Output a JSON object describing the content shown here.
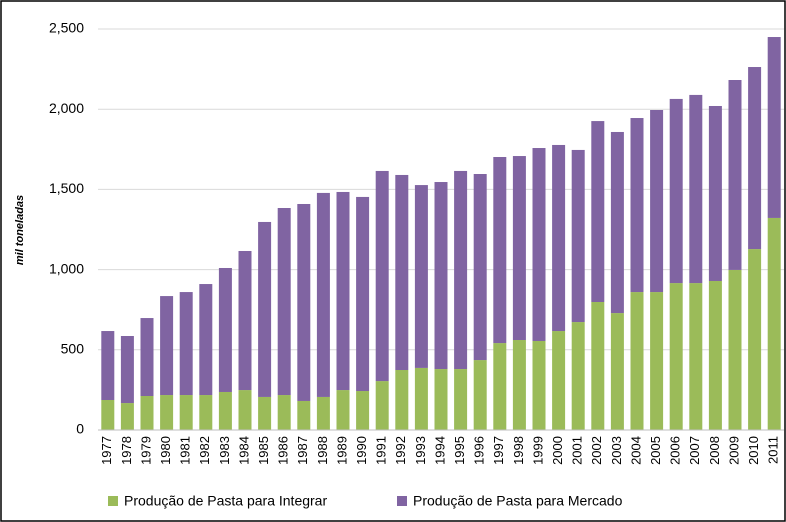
{
  "chart_data": {
    "type": "stacked_bar",
    "y_label": "mil toneladas",
    "categories": [
      "1977",
      "1978",
      "1979",
      "1980",
      "1981",
      "1982",
      "1983",
      "1984",
      "1985",
      "1986",
      "1987",
      "1988",
      "1989",
      "1990",
      "1991",
      "1992",
      "1993",
      "1994",
      "1995",
      "1996",
      "1997",
      "1998",
      "1999",
      "2000",
      "2001",
      "2002",
      "2003",
      "2004",
      "2005",
      "2006",
      "2007",
      "2008",
      "2009",
      "2010",
      "2011"
    ],
    "series": [
      {
        "name": "Produção de Pasta para Integrar",
        "color": "#9bbb59",
        "values": [
          187,
          168,
          212,
          218,
          218,
          218,
          237,
          249,
          206,
          218,
          181,
          206,
          249,
          243,
          305,
          374,
          387,
          380,
          380,
          436,
          542,
          561,
          555,
          617,
          673,
          798,
          729,
          860,
          860,
          916,
          916,
          929,
          998,
          1128,
          1322
        ]
      },
      {
        "name": "Produção de Pasta para Mercado",
        "color": "#8064a2",
        "values": [
          430,
          418,
          486,
          617,
          642,
          692,
          773,
          867,
          1091,
          1166,
          1228,
          1272,
          1235,
          1210,
          1310,
          1216,
          1140,
          1166,
          1235,
          1160,
          1160,
          1147,
          1203,
          1160,
          1073,
          1128,
          1129,
          1085,
          1135,
          1148,
          1173,
          1091,
          1184,
          1135,
          1128
        ]
      }
    ],
    "ylim": [
      0,
      2500
    ],
    "yticks": [
      0,
      500,
      {
        "value": 1000,
        "label": "1,000"
      },
      {
        "value": 1500,
        "label": "1,500"
      },
      {
        "value": 2000,
        "label": "2,000"
      },
      {
        "value": 2500,
        "label": "2,500"
      }
    ],
    "grid": true,
    "legend": "bottom"
  }
}
